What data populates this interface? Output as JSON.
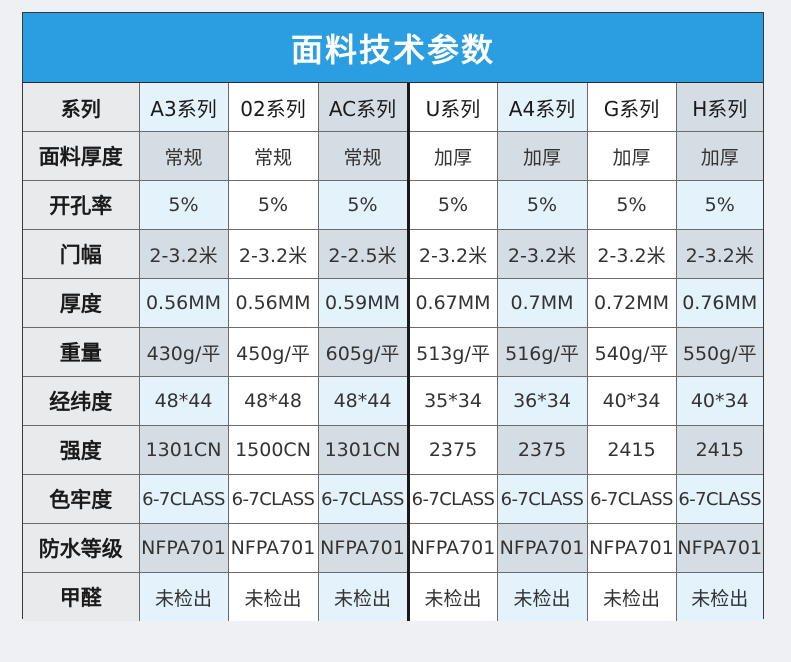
{
  "title": "面料技术参数",
  "colors": {
    "banner": "#2a9ee0",
    "label_bg": "#e9eaec",
    "cell_light": "#e3f2fb",
    "cell_dark": "#d4dde4",
    "cell_white": "#ffffff"
  },
  "header": [
    "系列",
    "A3系列",
    "02系列",
    "AC系列",
    "U系列",
    "A4系列",
    "G系列",
    "H系列"
  ],
  "rows": [
    {
      "label": "面料厚度",
      "values": [
        "常规",
        "常规",
        "常规",
        "加厚",
        "加厚",
        "加厚",
        "加厚"
      ]
    },
    {
      "label": "开孔率",
      "values": [
        "5%",
        "5%",
        "5%",
        "5%",
        "5%",
        "5%",
        "5%"
      ]
    },
    {
      "label": "门幅",
      "values": [
        "2-3.2米",
        "2-3.2米",
        "2-2.5米",
        "2-3.2米",
        "2-3.2米",
        "2-3.2米",
        "2-3.2米"
      ]
    },
    {
      "label": "厚度",
      "values": [
        "0.56MM",
        "0.56MM",
        "0.59MM",
        "0.67MM",
        "0.7MM",
        "0.72MM",
        "0.76MM"
      ]
    },
    {
      "label": "重量",
      "values": [
        "430g/平",
        "450g/平",
        "605g/平",
        "513g/平",
        "516g/平",
        "540g/平",
        "550g/平"
      ]
    },
    {
      "label": "经纬度",
      "values": [
        "48*44",
        "48*48",
        "48*44",
        "35*34",
        "36*34",
        "40*34",
        "40*34"
      ]
    },
    {
      "label": "强度",
      "values": [
        "1301CN",
        "1500CN",
        "1301CN",
        "2375",
        "2375",
        "2415",
        "2415"
      ]
    },
    {
      "label": "色牢度",
      "values": [
        "6-7CLASS",
        "6-7CLASS",
        "6-7CLASS",
        "6-7CLASS",
        "6-7CLASS",
        "6-7CLASS",
        "6-7CLASS"
      ]
    },
    {
      "label": "防水等级",
      "values": [
        "NFPA701",
        "NFPA701",
        "NFPA701",
        "NFPA701",
        "NFPA701",
        "NFPA701",
        "NFPA701"
      ]
    },
    {
      "label": "甲醛",
      "values": [
        "未检出",
        "未检出",
        "未检出",
        "未检出",
        "未检出",
        "未检出",
        "未检出"
      ]
    }
  ]
}
